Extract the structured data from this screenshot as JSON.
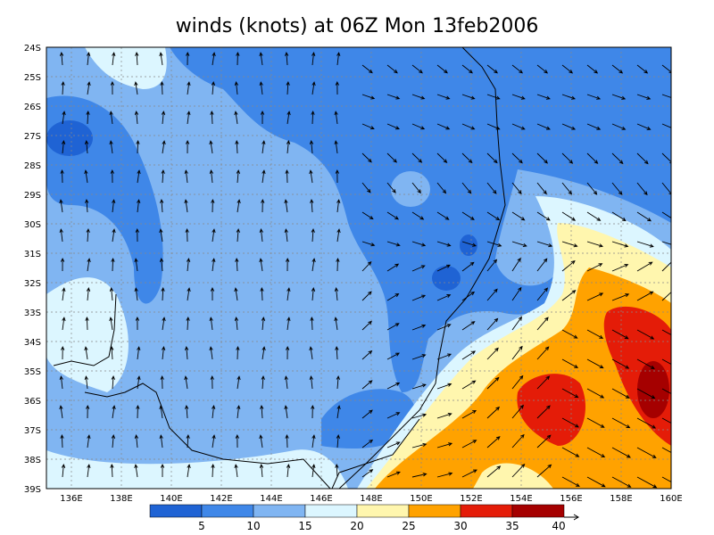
{
  "title": "winds (knots) at 06Z Mon 13feb2006",
  "map": {
    "lat_labels": [
      "24S",
      "25S",
      "26S",
      "27S",
      "28S",
      "29S",
      "30S",
      "31S",
      "32S",
      "33S",
      "34S",
      "35S",
      "36S",
      "37S",
      "38S",
      "39S"
    ],
    "lon_labels": [
      "136E",
      "138E",
      "140E",
      "142E",
      "144E",
      "146E",
      "148E",
      "150E",
      "152E",
      "154E",
      "156E",
      "158E",
      "160E"
    ]
  },
  "colorbar": {
    "levels": [
      5,
      10,
      15,
      20,
      25,
      30,
      35,
      40
    ],
    "colors": [
      "#1f63d4",
      "#3f87e8",
      "#80b5f2",
      "#dcf6ff",
      "#fff6ae",
      "#ffa200",
      "#e41c08",
      "#a50000"
    ]
  }
}
